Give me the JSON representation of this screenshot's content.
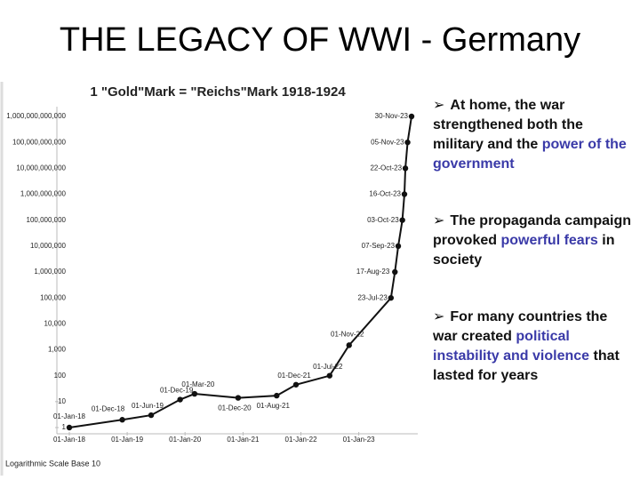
{
  "title": "THE LEGACY OF WWI - Germany",
  "bullets": [
    [
      "At home, the war strengthened both the military and the ",
      "power of the government"
    ],
    [
      "The propaganda campaign provoked ",
      "powerful fears",
      " in society"
    ],
    [
      "For many countries the war created ",
      "political instability and violence",
      " that lasted for years"
    ]
  ],
  "chart_data": {
    "type": "line",
    "title": "1 \"Gold\"Mark = \"Reichs\"Mark 1918-1924",
    "footnote": "Logarithmic Scale Base 10",
    "x": [
      "01-Jan-18",
      "01-Dec-18",
      "01-Jun-19",
      "01-Dec-19",
      "01-Mar-20",
      "01-Dec-20",
      "01-Aug-21",
      "01-Dec-21",
      "01-Jul-22",
      "01-Nov-22",
      "23-Jul-23",
      "17-Aug-23",
      "07-Sep-23",
      "03-Oct-23",
      "16-Oct-23",
      "22-Oct-23",
      "05-Nov-23",
      "30-Nov-23"
    ],
    "values": [
      1,
      2,
      3,
      12,
      20,
      14,
      17,
      45,
      100,
      1500,
      100000,
      1000000,
      10000000,
      100000000,
      1000000000,
      10000000000,
      100000000000,
      1000000000000
    ],
    "color": "#111111",
    "log_scale": true,
    "xlim": [
      "01-Jan-18",
      "30-Nov-23"
    ],
    "xticks": [
      "01-Jan-18",
      "01-Jan-19",
      "01-Jan-20",
      "01-Jan-21",
      "01-Jan-22",
      "01-Jan-23"
    ],
    "ylim": [
      1,
      1000000000000
    ],
    "yticks": [
      1,
      10,
      100,
      {
        "value": 1000,
        "label": "1,000"
      },
      {
        "value": 10000,
        "label": "10,000"
      },
      {
        "value": 100000,
        "label": "100,000"
      },
      {
        "value": 1000000,
        "label": "1,000,000"
      },
      {
        "value": 10000000,
        "label": "10,000,000"
      },
      {
        "value": 100000000,
        "label": "100,000,000"
      },
      {
        "value": 1000000000,
        "label": "1,000,000,000"
      },
      {
        "value": 10000000000,
        "label": "10,000,000,000"
      },
      {
        "value": 100000000000,
        "label": "100,000,000,000"
      },
      {
        "value": 1000000000000,
        "label": "1,000,000,000,000"
      }
    ]
  }
}
